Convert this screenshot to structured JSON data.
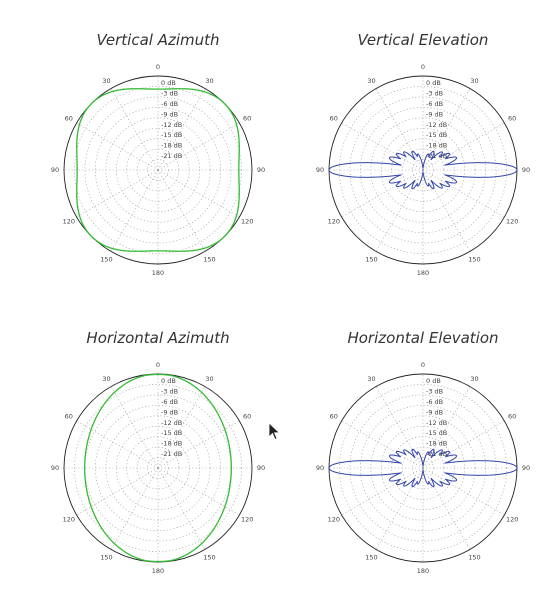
{
  "colors": {
    "green": "#33bb33",
    "blue": "#3344aa"
  },
  "chart_data": [
    {
      "type": "polar",
      "title": "Vertical Azimuth",
      "color": "#33bb33",
      "angular_ticks": [
        "30",
        "60",
        "90",
        "120",
        "150",
        "180",
        "150",
        "120",
        "90",
        "60",
        "30",
        "0"
      ],
      "radial_labels": [
        "0 dB",
        "-3 dB",
        "-6 dB",
        "-9 dB",
        "-12 dB",
        "-15 dB",
        "-18 dB",
        "-21 dB"
      ],
      "rlim": [
        -24,
        0
      ],
      "pattern": {
        "kind": "azimuth",
        "base": -1.2,
        "harm": 4,
        "amp": 0.9,
        "phase": 45,
        "tilt": 0
      }
    },
    {
      "type": "polar",
      "title": "Vertical Elevation",
      "color": "#3344aa",
      "angular_ticks": [
        "30",
        "60",
        "90",
        "120",
        "150",
        "180",
        "150",
        "120",
        "90",
        "60",
        "30",
        "0"
      ],
      "radial_labels": [
        "0 dB",
        "-3 dB",
        "-6 dB",
        "-9 dB",
        "-12 dB",
        "-15 dB",
        "-18 dB",
        "-21 dB"
      ],
      "rlim": [
        -24,
        0
      ],
      "pattern": {
        "kind": "elevation"
      }
    },
    {
      "type": "polar",
      "title": "Horizontal Azimuth",
      "color": "#33bb33",
      "angular_ticks": [
        "30",
        "60",
        "90",
        "120",
        "150",
        "180",
        "150",
        "120",
        "90",
        "60",
        "30",
        "0"
      ],
      "radial_labels": [
        "0 dB",
        "-3 dB",
        "-6 dB",
        "-9 dB",
        "-12 dB",
        "-15 dB",
        "-18 dB",
        "-21 dB"
      ],
      "rlim": [
        -24,
        0
      ],
      "pattern": {
        "kind": "ellipse",
        "a": 0.78,
        "b": 1.0
      }
    },
    {
      "type": "polar",
      "title": "Horizontal Elevation",
      "color": "#3344aa",
      "angular_ticks": [
        "30",
        "60",
        "90",
        "120",
        "150",
        "180",
        "150",
        "120",
        "90",
        "60",
        "30",
        "0"
      ],
      "radial_labels": [
        "0 dB",
        "-3 dB",
        "-6 dB",
        "-9 dB",
        "-12 dB",
        "-15 dB",
        "-18 dB",
        "-21 dB"
      ],
      "rlim": [
        -24,
        0
      ],
      "pattern": {
        "kind": "elevation"
      }
    }
  ]
}
